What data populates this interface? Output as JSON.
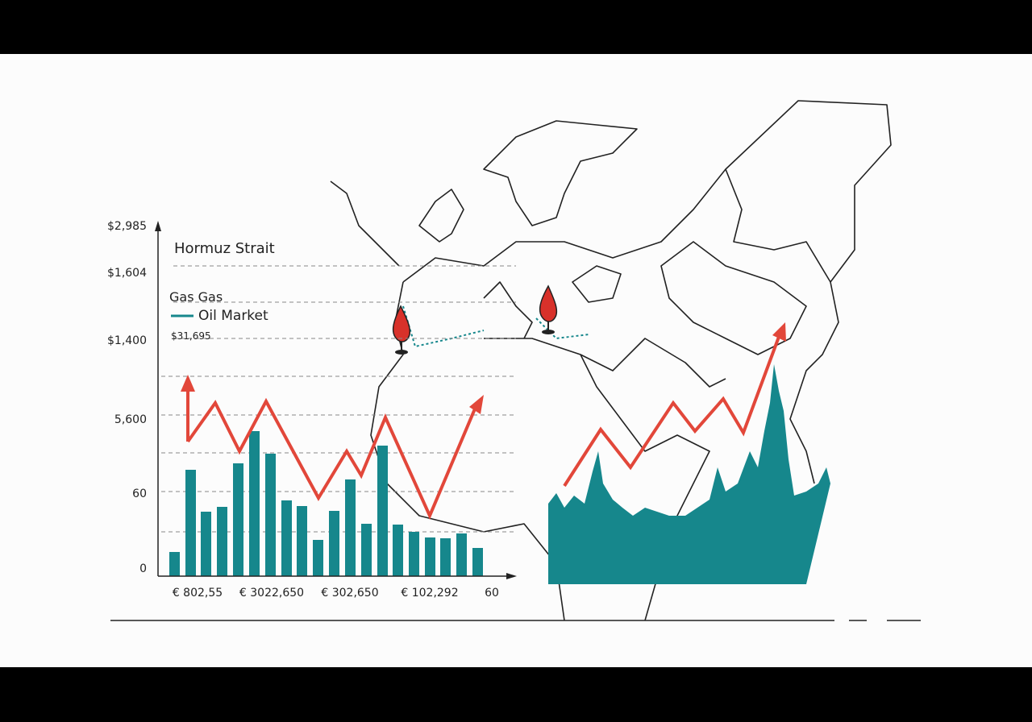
{
  "header": {
    "title": "Hormuz Strait"
  },
  "legend": {
    "items": [
      "Gas Gas",
      "Oil Market"
    ],
    "note": "$31,695"
  },
  "y_labels": [
    "$2,985",
    "$1,604",
    "$1,400",
    "5,600",
    "60",
    "0"
  ],
  "x_labels": [
    "€ 802,55",
    "€ 3022,650",
    "€ 302,650",
    "€ 102,292",
    "60"
  ]
}
